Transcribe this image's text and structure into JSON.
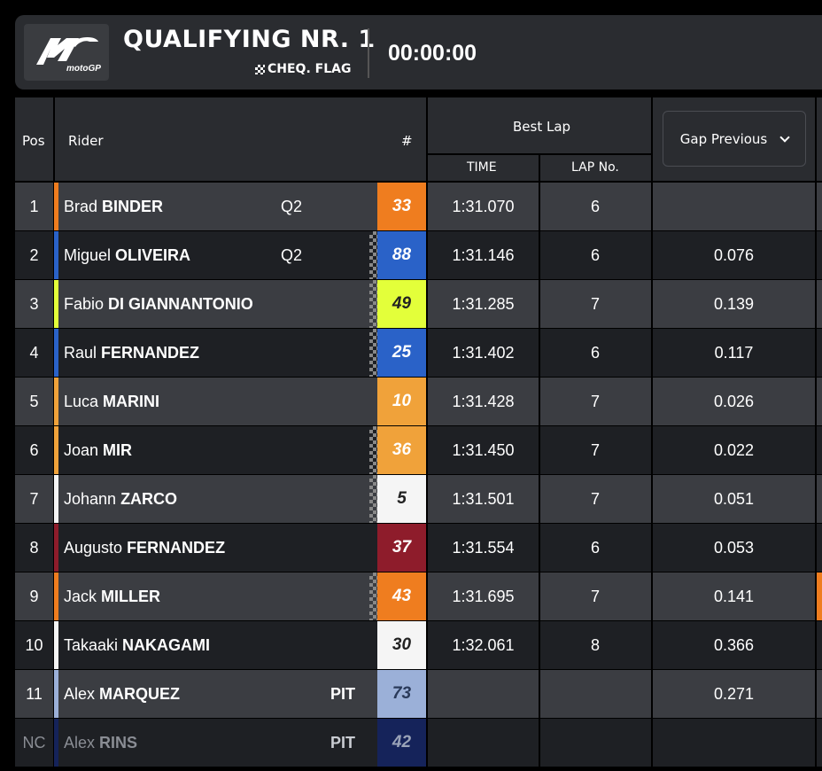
{
  "header": {
    "logo_text": "motoGP",
    "session": "QUALIFYING NR. 1",
    "flag_status": "CHEQ. FLAG",
    "clock": "00:00:00"
  },
  "columns": {
    "pos": "Pos",
    "rider": "Rider",
    "number": "#",
    "best_lap": "Best Lap",
    "time": "TIME",
    "lap_no": "LAP No.",
    "gap_selector": "Gap Previous"
  },
  "colors": {
    "row_odd": "#3b3d42",
    "row_even": "#1e2024",
    "header": "#2a2c30"
  },
  "rows": [
    {
      "pos": "1",
      "first": "Brad",
      "last": "BINDER",
      "tag": "Q2",
      "num": "33",
      "num_bg": "#ef7d1f",
      "num_fg": "#fff",
      "bar": "#ef7d1f",
      "time": "1:31.070",
      "lap": "6",
      "gap": "",
      "checker": false,
      "edge": ""
    },
    {
      "pos": "2",
      "first": "Miguel",
      "last": "OLIVEIRA",
      "tag": "Q2",
      "num": "88",
      "num_bg": "#2a62c8",
      "num_fg": "#fff",
      "bar": "#2a62c8",
      "time": "1:31.146",
      "lap": "6",
      "gap": "0.076",
      "checker": true,
      "edge": ""
    },
    {
      "pos": "3",
      "first": "Fabio",
      "last": "DI GIANNANTONIO",
      "tag": "",
      "num": "49",
      "num_bg": "#e3ff3a",
      "num_fg": "#222",
      "bar": "#e3ff3a",
      "time": "1:31.285",
      "lap": "7",
      "gap": "0.139",
      "checker": true,
      "edge": ""
    },
    {
      "pos": "4",
      "first": "Raul",
      "last": "FERNANDEZ",
      "tag": "",
      "num": "25",
      "num_bg": "#2a62c8",
      "num_fg": "#fff",
      "bar": "#2a62c8",
      "time": "1:31.402",
      "lap": "6",
      "gap": "0.117",
      "checker": true,
      "edge": ""
    },
    {
      "pos": "5",
      "first": "Luca",
      "last": "MARINI",
      "tag": "",
      "num": "10",
      "num_bg": "#f0a23a",
      "num_fg": "#fff",
      "bar": "#f0a23a",
      "time": "1:31.428",
      "lap": "7",
      "gap": "0.026",
      "checker": false,
      "edge": ""
    },
    {
      "pos": "6",
      "first": "Joan",
      "last": "MIR",
      "tag": "",
      "num": "36",
      "num_bg": "#f0a23a",
      "num_fg": "#fff",
      "bar": "#f0a23a",
      "time": "1:31.450",
      "lap": "7",
      "gap": "0.022",
      "checker": true,
      "edge": ""
    },
    {
      "pos": "7",
      "first": "Johann",
      "last": "ZARCO",
      "tag": "",
      "num": "5",
      "num_bg": "#f5f5f5",
      "num_fg": "#222",
      "bar": "#f5f5f5",
      "time": "1:31.501",
      "lap": "7",
      "gap": "0.051",
      "checker": true,
      "edge": ""
    },
    {
      "pos": "8",
      "first": "Augusto",
      "last": "FERNANDEZ",
      "tag": "",
      "num": "37",
      "num_bg": "#8e1c2b",
      "num_fg": "#fff",
      "bar": "#8e1c2b",
      "time": "1:31.554",
      "lap": "6",
      "gap": "0.053",
      "checker": false,
      "edge": ""
    },
    {
      "pos": "9",
      "first": "Jack",
      "last": "MILLER",
      "tag": "",
      "num": "43",
      "num_bg": "#ef7d1f",
      "num_fg": "#fff",
      "bar": "#ef7d1f",
      "time": "1:31.695",
      "lap": "7",
      "gap": "0.141",
      "checker": true,
      "edge": "#ef7d1f"
    },
    {
      "pos": "10",
      "first": "Takaaki",
      "last": "NAKAGAMI",
      "tag": "",
      "num": "30",
      "num_bg": "#f5f5f5",
      "num_fg": "#222",
      "bar": "#f5f5f5",
      "time": "1:32.061",
      "lap": "8",
      "gap": "0.366",
      "checker": false,
      "edge": ""
    },
    {
      "pos": "11",
      "first": "Alex",
      "last": "MARQUEZ",
      "tag": "PIT",
      "num": "73",
      "num_bg": "#9bb0d8",
      "num_fg": "#2a3a5a",
      "bar": "#9bb0d8",
      "time": "",
      "lap": "",
      "gap": "0.271",
      "checker": false,
      "edge": ""
    },
    {
      "pos": "NC",
      "first": "Alex",
      "last": "RINS",
      "tag": "PIT",
      "num": "42",
      "num_bg": "#15235a",
      "num_fg": "#9aa3b8",
      "bar": "#15235a",
      "time": "",
      "lap": "",
      "gap": "",
      "checker": false,
      "edge": "",
      "dim": true
    }
  ]
}
